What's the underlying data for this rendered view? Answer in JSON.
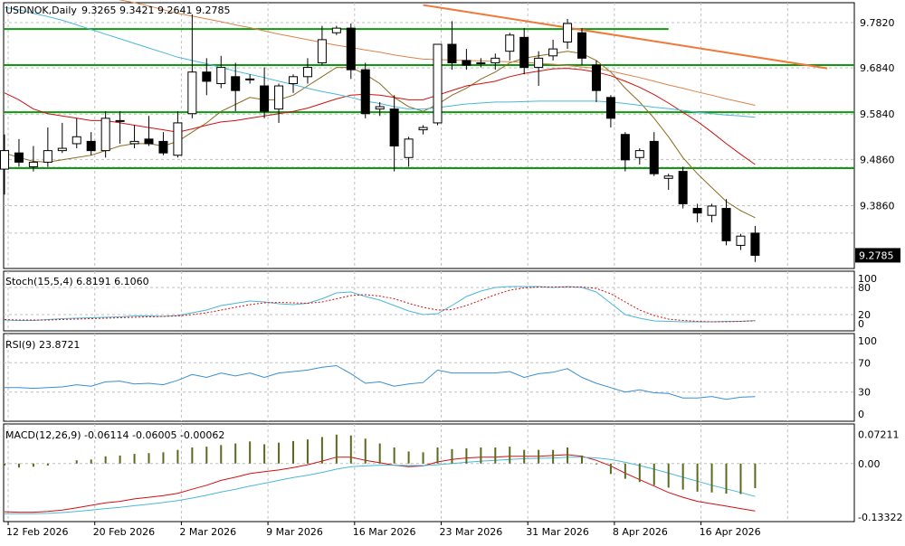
{
  "colors": {
    "background": "#ffffff",
    "grid": "#c0c0c0",
    "bull_body": "#ffffff",
    "bear_body": "#000000",
    "candle_outline": "#000000",
    "ma_fast": "#8b6b1e",
    "ma_mid": "#d01010",
    "ma_slow": "#4ab8d8",
    "ma_slowest": "#d9844a",
    "support_lines": "#119911",
    "trendline": "#f07838",
    "stoch_main": "#4ab8d8",
    "stoch_signal": "#d01010",
    "rsi": "#3a8fd0",
    "macd_hist": "#5a6b1e",
    "macd_line": "#d01010",
    "macd_signal": "#4ab8d8"
  },
  "chart_data": [
    {
      "type": "candlestick",
      "title": "USDNOK,Daily",
      "ohlc_text": "9.3265 9.3421 9.2641 9.2785",
      "last_price_label": "9.2785",
      "last_price": 9.2785,
      "ylim": [
        9.25,
        9.825
      ],
      "y_ticks": [
        "9.7820",
        "9.6840",
        "9.5840",
        "9.4860",
        "9.3860"
      ],
      "x_tick_labels": [
        "12 Feb 2026",
        "20 Feb 2026",
        "2 Mar 2026",
        "9 Mar 2026",
        "16 Mar 2026",
        "23 Mar 2026",
        "31 Mar 2026",
        "8 Apr 2026",
        "16 Apr 2026"
      ],
      "x_tick_index": [
        0,
        6,
        12,
        18,
        24,
        30,
        36,
        42,
        48
      ],
      "grid": true,
      "candles": [
        {
          "o": 9.465,
          "h": 9.54,
          "l": 9.41,
          "c": 9.505
        },
        {
          "o": 9.5,
          "h": 9.53,
          "l": 9.47,
          "c": 9.48
        },
        {
          "o": 9.47,
          "h": 9.515,
          "l": 9.46,
          "c": 9.48
        },
        {
          "o": 9.48,
          "h": 9.555,
          "l": 9.47,
          "c": 9.505
        },
        {
          "o": 9.505,
          "h": 9.565,
          "l": 9.5,
          "c": 9.51
        },
        {
          "o": 9.52,
          "h": 9.575,
          "l": 9.51,
          "c": 9.535
        },
        {
          "o": 9.525,
          "h": 9.545,
          "l": 9.495,
          "c": 9.505
        },
        {
          "o": 9.505,
          "h": 9.59,
          "l": 9.49,
          "c": 9.575
        },
        {
          "o": 9.57,
          "h": 9.59,
          "l": 9.52,
          "c": 9.57
        },
        {
          "o": 9.52,
          "h": 9.56,
          "l": 9.51,
          "c": 9.525
        },
        {
          "o": 9.53,
          "h": 9.58,
          "l": 9.515,
          "c": 9.52
        },
        {
          "o": 9.525,
          "h": 9.545,
          "l": 9.495,
          "c": 9.5
        },
        {
          "o": 9.495,
          "h": 9.59,
          "l": 9.49,
          "c": 9.565
        },
        {
          "o": 9.585,
          "h": 9.8,
          "l": 9.575,
          "c": 9.675
        },
        {
          "o": 9.675,
          "h": 9.705,
          "l": 9.625,
          "c": 9.655
        },
        {
          "o": 9.65,
          "h": 9.71,
          "l": 9.64,
          "c": 9.685
        },
        {
          "o": 9.665,
          "h": 9.695,
          "l": 9.59,
          "c": 9.635
        },
        {
          "o": 9.66,
          "h": 9.67,
          "l": 9.65,
          "c": 9.66
        },
        {
          "o": 9.645,
          "h": 9.685,
          "l": 9.575,
          "c": 9.59
        },
        {
          "o": 9.595,
          "h": 9.65,
          "l": 9.565,
          "c": 9.645
        },
        {
          "o": 9.65,
          "h": 9.67,
          "l": 9.63,
          "c": 9.665
        },
        {
          "o": 9.665,
          "h": 9.705,
          "l": 9.65,
          "c": 9.685
        },
        {
          "o": 9.695,
          "h": 9.775,
          "l": 9.69,
          "c": 9.745
        },
        {
          "o": 9.76,
          "h": 9.775,
          "l": 9.755,
          "c": 9.77
        },
        {
          "o": 9.77,
          "h": 9.78,
          "l": 9.66,
          "c": 9.68
        },
        {
          "o": 9.68,
          "h": 9.695,
          "l": 9.575,
          "c": 9.585
        },
        {
          "o": 9.595,
          "h": 9.61,
          "l": 9.58,
          "c": 9.6
        },
        {
          "o": 9.595,
          "h": 9.625,
          "l": 9.46,
          "c": 9.515
        },
        {
          "o": 9.49,
          "h": 9.535,
          "l": 9.47,
          "c": 9.53
        },
        {
          "o": 9.55,
          "h": 9.56,
          "l": 9.54,
          "c": 9.555
        },
        {
          "o": 9.565,
          "h": 9.73,
          "l": 9.56,
          "c": 9.735
        },
        {
          "o": 9.735,
          "h": 9.785,
          "l": 9.68,
          "c": 9.695
        },
        {
          "o": 9.7,
          "h": 9.725,
          "l": 9.68,
          "c": 9.69
        },
        {
          "o": 9.695,
          "h": 9.705,
          "l": 9.685,
          "c": 9.695
        },
        {
          "o": 9.695,
          "h": 9.715,
          "l": 9.68,
          "c": 9.705
        },
        {
          "o": 9.72,
          "h": 9.76,
          "l": 9.7,
          "c": 9.755
        },
        {
          "o": 9.75,
          "h": 9.77,
          "l": 9.67,
          "c": 9.685
        },
        {
          "o": 9.685,
          "h": 9.72,
          "l": 9.645,
          "c": 9.705
        },
        {
          "o": 9.71,
          "h": 9.745,
          "l": 9.7,
          "c": 9.725
        },
        {
          "o": 9.74,
          "h": 9.79,
          "l": 9.725,
          "c": 9.78
        },
        {
          "o": 9.76,
          "h": 9.77,
          "l": 9.69,
          "c": 9.705
        },
        {
          "o": 9.69,
          "h": 9.7,
          "l": 9.61,
          "c": 9.635
        },
        {
          "o": 9.62,
          "h": 9.625,
          "l": 9.555,
          "c": 9.575
        },
        {
          "o": 9.54,
          "h": 9.545,
          "l": 9.46,
          "c": 9.485
        },
        {
          "o": 9.49,
          "h": 9.51,
          "l": 9.475,
          "c": 9.505
        },
        {
          "o": 9.525,
          "h": 9.545,
          "l": 9.45,
          "c": 9.455
        },
        {
          "o": 9.445,
          "h": 9.455,
          "l": 9.42,
          "c": 9.45
        },
        {
          "o": 9.46,
          "h": 9.47,
          "l": 9.38,
          "c": 9.39
        },
        {
          "o": 9.38,
          "h": 9.39,
          "l": 9.35,
          "c": 9.37
        },
        {
          "o": 9.365,
          "h": 9.39,
          "l": 9.35,
          "c": 9.385
        },
        {
          "o": 9.38,
          "h": 9.4,
          "l": 9.3,
          "c": 9.31
        },
        {
          "o": 9.3,
          "h": 9.325,
          "l": 9.29,
          "c": 9.32
        },
        {
          "o": 9.3265,
          "h": 9.3421,
          "l": 9.2641,
          "c": 9.2785
        }
      ],
      "moving_averages": [
        {
          "values": [
            9.5,
            9.49,
            9.482,
            9.48,
            9.485,
            9.49,
            9.495,
            9.505,
            9.515,
            9.52,
            9.52,
            9.515,
            9.525,
            9.545,
            9.565,
            9.59,
            9.605,
            9.62,
            9.615,
            9.615,
            9.625,
            9.645,
            9.665,
            9.685,
            9.685,
            9.67,
            9.65,
            9.62,
            9.6,
            9.59,
            9.605,
            9.625,
            9.64,
            9.66,
            9.675,
            9.695,
            9.705,
            9.71,
            9.715,
            9.72,
            9.715,
            9.7,
            9.675,
            9.64,
            9.61,
            9.575,
            9.535,
            9.49,
            9.455,
            9.425,
            9.395,
            9.375,
            9.36
          ]
        },
        {
          "values": [
            9.63,
            9.615,
            9.595,
            9.585,
            9.58,
            9.575,
            9.57,
            9.57,
            9.565,
            9.56,
            9.555,
            9.55,
            9.545,
            9.552,
            9.56,
            9.567,
            9.57,
            9.575,
            9.58,
            9.585,
            9.59,
            9.597,
            9.607,
            9.617,
            9.625,
            9.627,
            9.625,
            9.62,
            9.615,
            9.615,
            9.625,
            9.635,
            9.645,
            9.65,
            9.655,
            9.665,
            9.672,
            9.677,
            9.682,
            9.683,
            9.68,
            9.675,
            9.667,
            9.655,
            9.642,
            9.626,
            9.608,
            9.588,
            9.568,
            9.545,
            9.52,
            9.497,
            9.475
          ]
        },
        {
          "values": [
            9.815,
            9.81,
            9.802,
            9.795,
            9.787,
            9.777,
            9.767,
            9.757,
            9.747,
            9.737,
            9.727,
            9.717,
            9.707,
            9.7,
            9.693,
            9.685,
            9.677,
            9.67,
            9.663,
            9.655,
            9.648,
            9.64,
            9.633,
            9.627,
            9.62,
            9.612,
            9.607,
            9.6,
            9.595,
            9.595,
            9.598,
            9.602,
            9.606,
            9.608,
            9.61,
            9.61,
            9.611,
            9.612,
            9.612,
            9.612,
            9.612,
            9.612,
            9.61,
            9.607,
            9.603,
            9.599,
            9.596,
            9.592,
            9.588,
            9.585,
            9.582,
            9.58,
            9.577
          ]
        },
        {
          "values": [
            9.865,
            9.862,
            9.858,
            9.855,
            9.851,
            9.847,
            9.842,
            9.837,
            9.831,
            9.825,
            9.818,
            9.81,
            9.802,
            9.796,
            9.79,
            9.784,
            9.777,
            9.771,
            9.764,
            9.757,
            9.751,
            9.745,
            9.739,
            9.733,
            9.728,
            9.723,
            9.718,
            9.712,
            9.707,
            9.703,
            9.702,
            9.701,
            9.7,
            9.699,
            9.698,
            9.697,
            9.696,
            9.694,
            9.692,
            9.689,
            9.686,
            9.683,
            9.677,
            9.67,
            9.663,
            9.655,
            9.647,
            9.64,
            9.632,
            9.625,
            9.617,
            9.61,
            9.603
          ]
        }
      ],
      "horizontal_lines": [
        9.768,
        9.69,
        9.588,
        9.467
      ],
      "trendline": {
        "from": {
          "index": 29,
          "value": 9.82
        },
        "to": {
          "index": 57,
          "value": 9.683
        }
      }
    },
    {
      "type": "line",
      "title": "Stoch(15,5,4) 6.8191 6.1060",
      "ylim": [
        0,
        100
      ],
      "y_ticks": [
        "100",
        "80",
        "20",
        "0"
      ],
      "series": [
        {
          "values": [
            8,
            7,
            7,
            9,
            11,
            12,
            13,
            14,
            15,
            17,
            17,
            16,
            18,
            24,
            30,
            40,
            45,
            50,
            48,
            44,
            42,
            45,
            55,
            68,
            70,
            60,
            52,
            40,
            28,
            20,
            22,
            40,
            60,
            72,
            80,
            82,
            82,
            82,
            80,
            82,
            80,
            70,
            45,
            20,
            12,
            6,
            5,
            4,
            4,
            4,
            5,
            5,
            6.8191
          ]
        },
        {
          "values": [
            9,
            8,
            8,
            8,
            9,
            10,
            11,
            12,
            13,
            14,
            15,
            16,
            17,
            20,
            24,
            30,
            36,
            42,
            46,
            47,
            46,
            45,
            48,
            55,
            62,
            64,
            61,
            55,
            45,
            36,
            30,
            31,
            40,
            52,
            64,
            74,
            79,
            81,
            81,
            81,
            81,
            78,
            66,
            48,
            30,
            18,
            10,
            7,
            5,
            4,
            4,
            5,
            6.106
          ]
        }
      ]
    },
    {
      "type": "line",
      "title": "RSI(9) 23.8721",
      "ylim": [
        0,
        100
      ],
      "y_ticks": [
        "100",
        "70",
        "30",
        "0"
      ],
      "series": [
        {
          "values": [
            36,
            36,
            35,
            36,
            37,
            40,
            38,
            44,
            45,
            41,
            42,
            40,
            46,
            54,
            50,
            56,
            52,
            56,
            50,
            56,
            58,
            60,
            64,
            66,
            55,
            42,
            44,
            38,
            41,
            43,
            60,
            56,
            56,
            56,
            56,
            58,
            50,
            55,
            57,
            62,
            50,
            42,
            36,
            30,
            33,
            29,
            28,
            22,
            22,
            24,
            20,
            23,
            23.8721
          ]
        }
      ]
    },
    {
      "type": "bar",
      "title": "MACD(12,26,9) -0.06114 -0.06005 -0.00062",
      "ylim": [
        -0.14,
        0.085
      ],
      "y_ticks": [
        "0.07211",
        "0.00",
        "-0.13322"
      ],
      "histogram": [
        -0.005,
        -0.01,
        -0.008,
        -0.005,
        0.0,
        0.008,
        0.01,
        0.018,
        0.02,
        0.024,
        0.026,
        0.028,
        0.034,
        0.04,
        0.042,
        0.046,
        0.05,
        0.055,
        0.048,
        0.052,
        0.056,
        0.06,
        0.066,
        0.072,
        0.07,
        0.062,
        0.05,
        0.04,
        0.03,
        0.028,
        0.04,
        0.036,
        0.038,
        0.04,
        0.04,
        0.042,
        0.034,
        0.034,
        0.034,
        0.04,
        0.02,
        -0.002,
        -0.026,
        -0.038,
        -0.046,
        -0.054,
        -0.06,
        -0.065,
        -0.07,
        -0.072,
        -0.075,
        -0.076,
        -0.06114
      ],
      "series": [
        {
          "values": [
            -0.12,
            -0.121,
            -0.121,
            -0.119,
            -0.116,
            -0.11,
            -0.104,
            -0.098,
            -0.094,
            -0.088,
            -0.084,
            -0.08,
            -0.074,
            -0.064,
            -0.054,
            -0.042,
            -0.034,
            -0.025,
            -0.02,
            -0.016,
            -0.01,
            -0.003,
            0.006,
            0.016,
            0.016,
            0.008,
            0.002,
            -0.004,
            -0.008,
            -0.006,
            0.004,
            0.01,
            0.014,
            0.016,
            0.016,
            0.018,
            0.018,
            0.018,
            0.02,
            0.022,
            0.018,
            0.008,
            -0.006,
            -0.024,
            -0.04,
            -0.056,
            -0.072,
            -0.084,
            -0.094,
            -0.1,
            -0.106,
            -0.112,
            -0.118
          ]
        },
        {
          "values": [
            -0.125,
            -0.125,
            -0.125,
            -0.124,
            -0.122,
            -0.119,
            -0.116,
            -0.112,
            -0.109,
            -0.105,
            -0.101,
            -0.097,
            -0.092,
            -0.086,
            -0.079,
            -0.071,
            -0.064,
            -0.056,
            -0.049,
            -0.042,
            -0.035,
            -0.029,
            -0.022,
            -0.014,
            -0.008,
            -0.006,
            -0.004,
            -0.004,
            -0.005,
            -0.005,
            -0.003,
            0.0,
            0.003,
            0.006,
            0.008,
            0.01,
            0.012,
            0.013,
            0.014,
            0.016,
            0.016,
            0.014,
            0.01,
            0.003,
            -0.005,
            -0.014,
            -0.024,
            -0.034,
            -0.044,
            -0.054,
            -0.063,
            -0.072,
            -0.082
          ]
        }
      ]
    }
  ]
}
